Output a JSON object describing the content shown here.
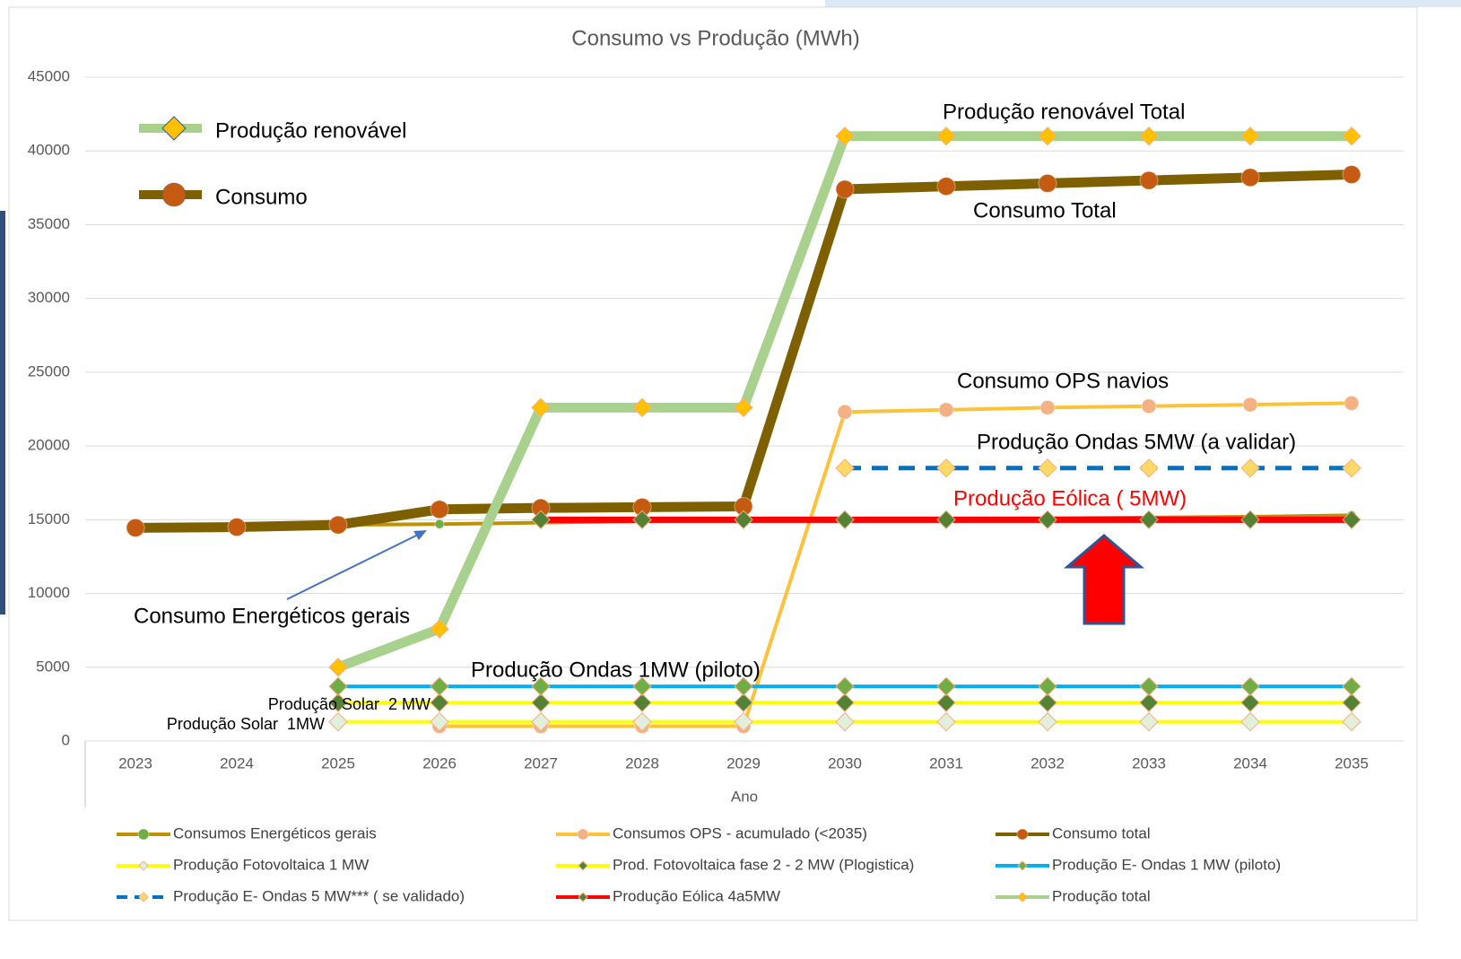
{
  "chart_data": {
    "type": "line",
    "title": "Consumo vs Produção (MWh)",
    "x_label": "Ano",
    "categories": [
      "2023",
      "2024",
      "2025",
      "2026",
      "2027",
      "2028",
      "2029",
      "2030",
      "2031",
      "2032",
      "2033",
      "2034",
      "2035"
    ],
    "ylim": [
      0,
      45000
    ],
    "yticks": [
      0,
      5000,
      10000,
      15000,
      20000,
      25000,
      30000,
      35000,
      40000,
      45000
    ],
    "grid": true,
    "legend": "bottom",
    "series": [
      {
        "name": "Consumos Energéticos gerais",
        "color": "#bf9000",
        "marker": "circle",
        "marker_color": "#70ad47",
        "width": 4,
        "dashed": false,
        "values": [
          14500,
          14550,
          14650,
          14700,
          14800,
          14900,
          15000,
          15000,
          15050,
          15100,
          15150,
          15200,
          15300
        ]
      },
      {
        "name": "Consumos OPS - acumulado (<2035)",
        "color": "#fbc23a",
        "marker": "circle",
        "marker_color": "#f4b183",
        "width": 4,
        "dashed": false,
        "values": [
          null,
          null,
          null,
          1000,
          1000,
          1000,
          1000,
          22300,
          22450,
          22600,
          22700,
          22800,
          22900
        ]
      },
      {
        "name": "Consumo total",
        "color": "#7f6000",
        "marker": "circle",
        "marker_color": "#c55a11",
        "width": 11,
        "dashed": false,
        "values": [
          14450,
          14500,
          14650,
          15700,
          15800,
          15850,
          15900,
          37400,
          37600,
          37800,
          38000,
          38200,
          38400
        ]
      },
      {
        "name": "Produção Fotovoltaica 1 MW",
        "color": "#ffff00",
        "marker": "diamond",
        "marker_color": "#e2efda",
        "width": 4,
        "dashed": false,
        "values": [
          null,
          null,
          1300,
          1300,
          1300,
          1300,
          1300,
          1300,
          1300,
          1300,
          1300,
          1300,
          1300
        ]
      },
      {
        "name": "Prod. Fotovoltaica fase 2 - 2 MW (Plogistica)",
        "color": "#ffff00",
        "marker": "diamond",
        "marker_color": "#548235",
        "width": 4,
        "dashed": false,
        "values": [
          null,
          null,
          2600,
          2600,
          2600,
          2600,
          2600,
          2600,
          2600,
          2600,
          2600,
          2600,
          2600
        ]
      },
      {
        "name": "Produção E- Ondas 1 MW (piloto)",
        "color": "#00b0f0",
        "marker": "diamond",
        "marker_color": "#70ad47",
        "width": 4,
        "dashed": false,
        "values": [
          null,
          null,
          3700,
          3700,
          3700,
          3700,
          3700,
          3700,
          3700,
          3700,
          3700,
          3700,
          3700
        ]
      },
      {
        "name": "Produção E- Ondas 5 MW*** ( se validado)",
        "color": "#0070c0",
        "marker": "diamond",
        "marker_color": "#ffd966",
        "width": 5,
        "dashed": true,
        "values": [
          null,
          null,
          null,
          null,
          null,
          null,
          null,
          18500,
          18500,
          18500,
          18500,
          18500,
          18500
        ]
      },
      {
        "name": "Produção Eólica 4a5MW",
        "color": "#ff0000",
        "marker": "diamond",
        "marker_color": "#548235",
        "width": 7,
        "dashed": false,
        "values": [
          null,
          null,
          null,
          null,
          15000,
          15000,
          15000,
          15000,
          15000,
          15000,
          15000,
          15000,
          15000
        ]
      },
      {
        "name": "Produção total",
        "color": "#a9d18e",
        "marker": "diamond",
        "marker_color": "#ffc000",
        "width": 11,
        "dashed": false,
        "values": [
          null,
          null,
          5000,
          7600,
          22600,
          22600,
          22600,
          41000,
          41000,
          41000,
          41000,
          41000,
          41000
        ]
      }
    ],
    "key_legend": [
      {
        "name": "Produção renovável",
        "color": "#a9d18e",
        "marker": "diamond",
        "marker_color": "#ffc000"
      },
      {
        "name": "Consumo",
        "color": "#7f6000",
        "marker": "circle",
        "marker_color": "#c55a11"
      }
    ],
    "annotations": [
      {
        "text": "Produção renovável Total",
        "color": "#000000"
      },
      {
        "text": "Consumo Total",
        "color": "#000000"
      },
      {
        "text": "Consumo OPS navios",
        "color": "#000000"
      },
      {
        "text": "Produção Ondas 5MW (a validar)",
        "color": "#000000"
      },
      {
        "text": "Produção Eólica ( 5MW)",
        "color": "#ff0000"
      },
      {
        "text": "Consumo Energéticos gerais",
        "color": "#000000"
      },
      {
        "text": "Produção Ondas 1MW (piloto)",
        "color": "#000000"
      },
      {
        "text": "Produção Solar  2 MW",
        "color": "#000000"
      },
      {
        "text": "Produção Solar  1MW",
        "color": "#000000"
      }
    ]
  }
}
